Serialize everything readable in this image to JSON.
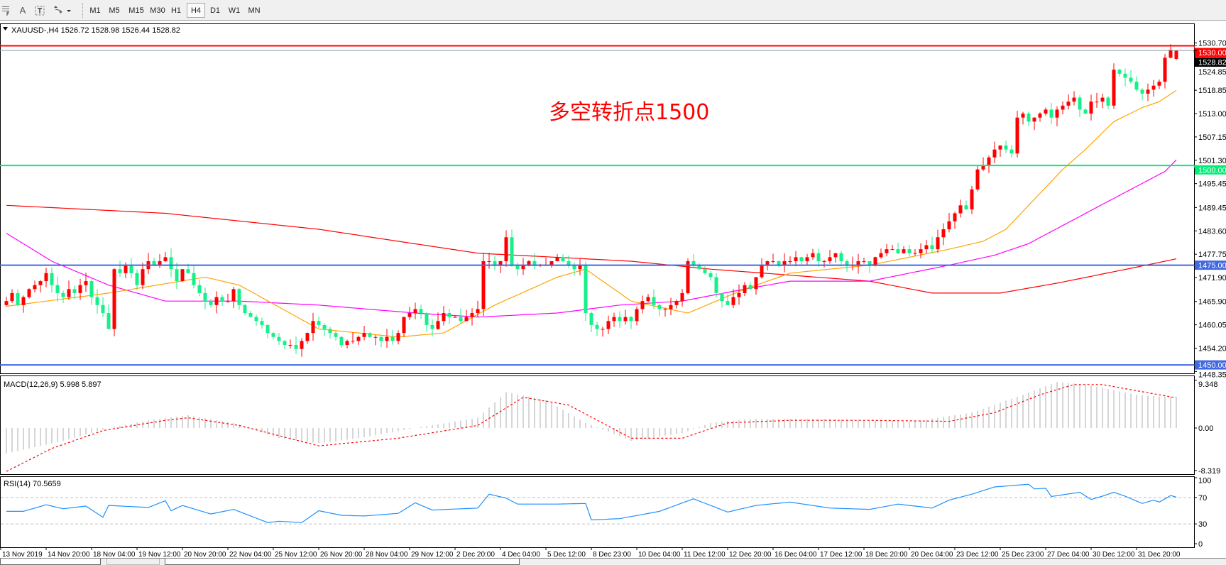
{
  "toolbar": {
    "icons": [
      "grid-icon",
      "text-a-icon",
      "text-label-icon",
      "arrows-icon"
    ],
    "a_label": "A",
    "timeframes": [
      "M1",
      "M5",
      "M15",
      "M30",
      "H1",
      "H4",
      "D1",
      "W1",
      "MN"
    ],
    "active_timeframe": "H4"
  },
  "header": {
    "title": "XAUUSD-,H4  1526.72 1528.98 1526.44 1528.82"
  },
  "annotation": "多空转折点1500",
  "colors": {
    "bull": "#ff0000",
    "bear": "#17f08a",
    "ma_fast": "#ffa500",
    "ma_mid": "#ff00ff",
    "ma_slow": "#ff0000",
    "support": "#4169e1",
    "pivot": "#00ee77",
    "resistance": "#ff0000",
    "rsi": "#1e90ff",
    "macd_hist": "#c0c0c0",
    "macd_signal": "#ff0000"
  },
  "chart_data": {
    "type": "candlestick",
    "symbol": "XAUUSD-",
    "timeframe": "H4",
    "ylim": [
      1447.5,
      1535
    ],
    "closes": [
      1466,
      1468,
      1465,
      1467,
      1469,
      1470,
      1471,
      1473,
      1470,
      1468,
      1467,
      1469,
      1468,
      1470,
      1471,
      1467,
      1465,
      1463,
      1459,
      1474,
      1473,
      1475,
      1473,
      1470,
      1474,
      1476,
      1475,
      1476,
      1477,
      1474,
      1471,
      1474,
      1473,
      1470,
      1468,
      1466,
      1465,
      1467,
      1466,
      1466,
      1469,
      1465,
      1463,
      1462,
      1461,
      1460,
      1458,
      1457,
      1456,
      1455,
      1455,
      1454,
      1456,
      1458,
      1461,
      1460,
      1459,
      1458,
      1457,
      1455,
      1456,
      1456,
      1457,
      1458,
      1457,
      1457,
      1456,
      1457,
      1456,
      1458,
      1462,
      1463,
      1464,
      1463,
      1460,
      1459,
      1461,
      1463,
      1462,
      1462,
      1461,
      1462,
      1463,
      1464,
      1476,
      1476,
      1475,
      1476,
      1482,
      1475,
      1474,
      1475,
      1476,
      1475,
      1475,
      1475,
      1476,
      1477,
      1476,
      1475,
      1474,
      1475,
      1463,
      1460,
      1459,
      1459,
      1461,
      1462,
      1461,
      1462,
      1461,
      1464,
      1466,
      1467,
      1465,
      1464,
      1464,
      1465,
      1466,
      1468,
      1476,
      1475,
      1474,
      1473,
      1472,
      1468,
      1466,
      1465,
      1467,
      1468,
      1470,
      1469,
      1472,
      1475,
      1476,
      1476,
      1475,
      1476,
      1476,
      1477,
      1476,
      1477,
      1478,
      1476,
      1476,
      1477,
      1478,
      1476,
      1475,
      1475,
      1476,
      1476,
      1475,
      1477,
      1478,
      1479,
      1479,
      1478,
      1479,
      1478,
      1478,
      1479,
      1480,
      1479,
      1482,
      1484,
      1486,
      1488,
      1490,
      1489,
      1494,
      1499,
      1500,
      1502,
      1504,
      1505,
      1504,
      1503,
      1512,
      1513,
      1511,
      1512,
      1513,
      1514,
      1512,
      1514,
      1515,
      1516,
      1517,
      1514,
      1513,
      1516,
      1516,
      1517,
      1515,
      1524,
      1523,
      1522,
      1521,
      1519,
      1518,
      1519,
      1520,
      1521,
      1527,
      1529,
      1528.82
    ],
    "last_bar": {
      "open": 1526.72,
      "high": 1528.98,
      "low": 1526.44,
      "close": 1528.82
    },
    "moving_averages": [
      {
        "key": "ma_slow",
        "points": [
          [
            0,
            1490
          ],
          [
            14,
            1489
          ],
          [
            28,
            1488
          ],
          [
            55,
            1484
          ],
          [
            83,
            1478
          ],
          [
            110,
            1476
          ],
          [
            124,
            1474
          ],
          [
            152,
            1471
          ],
          [
            163,
            1468
          ],
          [
            175,
            1468
          ],
          [
            185,
            1470.5
          ],
          [
            199,
            1474.5
          ],
          [
            206,
            1476.6
          ]
        ]
      },
      {
        "key": "ma_mid",
        "points": [
          [
            0,
            1483
          ],
          [
            8,
            1476
          ],
          [
            18,
            1470
          ],
          [
            28,
            1466
          ],
          [
            41,
            1466
          ],
          [
            55,
            1465
          ],
          [
            72,
            1463
          ],
          [
            83,
            1462
          ],
          [
            97,
            1463
          ],
          [
            108,
            1465
          ],
          [
            119,
            1466
          ],
          [
            130,
            1469
          ],
          [
            138,
            1471
          ],
          [
            152,
            1471
          ],
          [
            166,
            1475
          ],
          [
            174,
            1477.5
          ],
          [
            180,
            1480.4
          ],
          [
            194,
            1491
          ],
          [
            204,
            1498.5
          ],
          [
            206,
            1501.4
          ]
        ]
      },
      {
        "key": "ma_fast",
        "points": [
          [
            0,
            1464.7
          ],
          [
            18,
            1468
          ],
          [
            35,
            1472
          ],
          [
            41,
            1470
          ],
          [
            55,
            1459
          ],
          [
            69,
            1457
          ],
          [
            77,
            1458
          ],
          [
            86,
            1465
          ],
          [
            97,
            1472
          ],
          [
            102,
            1474
          ],
          [
            110,
            1466
          ],
          [
            120,
            1463
          ],
          [
            130,
            1469
          ],
          [
            138,
            1473
          ],
          [
            152,
            1475
          ],
          [
            166,
            1479
          ],
          [
            172,
            1481
          ],
          [
            176,
            1484
          ],
          [
            180,
            1490
          ],
          [
            186,
            1499
          ],
          [
            190,
            1504
          ],
          [
            195,
            1511
          ],
          [
            200,
            1514.5
          ],
          [
            203,
            1516
          ],
          [
            206,
            1518.8
          ]
        ]
      }
    ],
    "horizontal_lines": [
      {
        "price": 1530,
        "label": "1530.00",
        "key": "resistance"
      },
      {
        "price": 1500,
        "label": "1500.00",
        "key": "pivot"
      },
      {
        "price": 1475,
        "label": "1475.00",
        "key": "support"
      },
      {
        "price": 1450,
        "label": "1450.00",
        "key": "support"
      }
    ],
    "current_price": {
      "price": 1528.82,
      "label": "1528.82"
    },
    "price_ticks": [
      "1530.70",
      "1524.85",
      "1518.85",
      "1513.00",
      "1507.15",
      "1501.30",
      "1495.45",
      "1489.45",
      "1483.60",
      "1477.75",
      "1471.90",
      "1465.90",
      "1460.05",
      "1454.20",
      "1448.35"
    ],
    "time_labels": [
      "13 Nov 2019",
      "14 Nov 20:00",
      "18 Nov 04:00",
      "19 Nov 12:00",
      "20 Nov 20:00",
      "22 Nov 04:00",
      "25 Nov 12:00",
      "26 Nov 20:00",
      "28 Nov 04:00",
      "29 Nov 12:00",
      "2 Dec 20:00",
      "4 Dec 04:00",
      "5 Dec 12:00",
      "8 Dec 23:00",
      "10 Dec 04:00",
      "11 Dec 12:00",
      "12 Dec 20:00",
      "16 Dec 04:00",
      "17 Dec 12:00",
      "18 Dec 20:00",
      "20 Dec 04:00",
      "23 Dec 12:00",
      "25 Dec 23:00",
      "27 Dec 04:00",
      "30 Dec 12:00",
      "31 Dec 20:00"
    ],
    "macd": {
      "label": "MACD(12,26,9) 5.998 5.897",
      "ticks": [
        {
          "value": 9.348,
          "label": "9.348"
        },
        {
          "value": 0,
          "label": "0.00"
        },
        {
          "value": -8.319,
          "label": "-8.319"
        }
      ],
      "histogram": [
        [
          0,
          -5
        ],
        [
          10,
          -2.5
        ],
        [
          18,
          0
        ],
        [
          25,
          1.5
        ],
        [
          32,
          2.5
        ],
        [
          40,
          1
        ],
        [
          48,
          -2
        ],
        [
          55,
          -3
        ],
        [
          62,
          -2
        ],
        [
          72,
          0
        ],
        [
          83,
          2
        ],
        [
          88,
          7
        ],
        [
          95,
          5.5
        ],
        [
          102,
          1
        ],
        [
          110,
          -2.5
        ],
        [
          119,
          -1
        ],
        [
          124,
          1
        ],
        [
          131,
          1.8
        ],
        [
          145,
          1.8
        ],
        [
          159,
          1.2
        ],
        [
          170,
          3
        ],
        [
          179,
          6.5
        ],
        [
          185,
          9
        ],
        [
          190,
          8.5
        ],
        [
          199,
          6.5
        ],
        [
          206,
          6
        ]
      ],
      "signal": [
        [
          0,
          -8.5
        ],
        [
          8,
          -4
        ],
        [
          17,
          -0.5
        ],
        [
          28,
          1.5
        ],
        [
          32,
          2
        ],
        [
          41,
          0.5
        ],
        [
          55,
          -3.5
        ],
        [
          69,
          -2
        ],
        [
          83,
          0.5
        ],
        [
          91,
          6
        ],
        [
          99,
          4.5
        ],
        [
          110,
          -2
        ],
        [
          119,
          -2
        ],
        [
          127,
          1
        ],
        [
          138,
          1.5
        ],
        [
          152,
          1.5
        ],
        [
          166,
          1.3
        ],
        [
          174,
          3
        ],
        [
          182,
          6.5
        ],
        [
          188,
          8.5
        ],
        [
          193,
          8.5
        ],
        [
          206,
          5.9
        ]
      ]
    },
    "rsi": {
      "label": "RSI(14) 70.5659",
      "ticks": [
        {
          "value": 100,
          "label": "100"
        },
        {
          "value": 70,
          "label": "70"
        },
        {
          "value": 30,
          "label": "30"
        },
        {
          "value": 0,
          "label": "0"
        }
      ],
      "levels": [
        70,
        30
      ],
      "points": [
        [
          0,
          49
        ],
        [
          3,
          49
        ],
        [
          7,
          59
        ],
        [
          10,
          53
        ],
        [
          14,
          57
        ],
        [
          17,
          40
        ],
        [
          18,
          58
        ],
        [
          25,
          55
        ],
        [
          28,
          65
        ],
        [
          29,
          50
        ],
        [
          31,
          58
        ],
        [
          36,
          45
        ],
        [
          40,
          52
        ],
        [
          46,
          32
        ],
        [
          48,
          34
        ],
        [
          52,
          32
        ],
        [
          55,
          50
        ],
        [
          59,
          43
        ],
        [
          63,
          42
        ],
        [
          69,
          46
        ],
        [
          72,
          62
        ],
        [
          75,
          51
        ],
        [
          83,
          54
        ],
        [
          85,
          75
        ],
        [
          88,
          69
        ],
        [
          90,
          60
        ],
        [
          97,
          60
        ],
        [
          102,
          61
        ],
        [
          103,
          36
        ],
        [
          108,
          38
        ],
        [
          115,
          49
        ],
        [
          121,
          68
        ],
        [
          127,
          48
        ],
        [
          132,
          58
        ],
        [
          138,
          63
        ],
        [
          145,
          54
        ],
        [
          152,
          52
        ],
        [
          157,
          60
        ],
        [
          163,
          54
        ],
        [
          166,
          66
        ],
        [
          170,
          75
        ],
        [
          174,
          86
        ],
        [
          180,
          90
        ],
        [
          181,
          83
        ],
        [
          183,
          84
        ],
        [
          184,
          71.5
        ],
        [
          189,
          78
        ],
        [
          191,
          67
        ],
        [
          193,
          72
        ],
        [
          195,
          78
        ],
        [
          197,
          72
        ],
        [
          200,
          61
        ],
        [
          202,
          66
        ],
        [
          203,
          63
        ],
        [
          205,
          73
        ],
        [
          206,
          70.57
        ]
      ]
    }
  }
}
